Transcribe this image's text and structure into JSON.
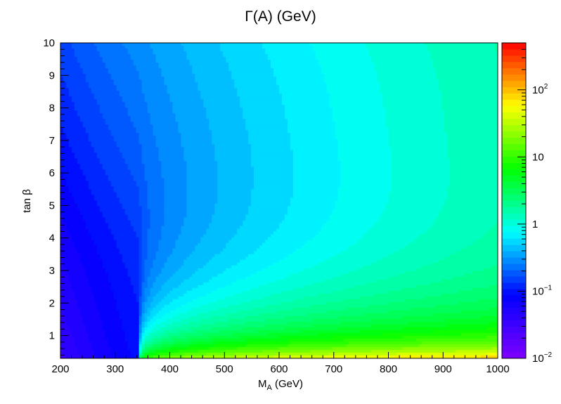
{
  "chart_data": {
    "type": "heatmap",
    "title": "Γ(A) (GeV)",
    "xlabel": "M_A (GeV)",
    "ylabel": "tan β",
    "xlim": [
      200,
      1000
    ],
    "ylim": [
      0.3,
      10
    ],
    "x_ticks": [
      200,
      300,
      400,
      500,
      600,
      700,
      800,
      900,
      1000
    ],
    "x_tick_labels": [
      "200",
      "300",
      "400",
      "500",
      "600",
      "700",
      "800",
      "900",
      "1000"
    ],
    "y_ticks": [
      1,
      2,
      3,
      4,
      5,
      6,
      7,
      8,
      9,
      10
    ],
    "y_tick_labels": [
      "1",
      "2",
      "3",
      "4",
      "5",
      "6",
      "7",
      "8",
      "9",
      "10"
    ],
    "colorbar": {
      "scale": "log",
      "range": [
        0.01,
        500
      ],
      "ticks": [
        0.01,
        0.1,
        1,
        10,
        100
      ],
      "tick_labels": [
        {
          "base": "10",
          "exp": "−2"
        },
        {
          "base": "10",
          "exp": "−1"
        },
        {
          "base": "1",
          "exp": ""
        },
        {
          "base": "10",
          "exp": ""
        },
        {
          "base": "10",
          "exp": "2"
        }
      ],
      "palette": [
        "#7f00ff",
        "#0000ff",
        "#00ffff",
        "#00ff00",
        "#ffff00",
        "#ff0000"
      ]
    }
  }
}
